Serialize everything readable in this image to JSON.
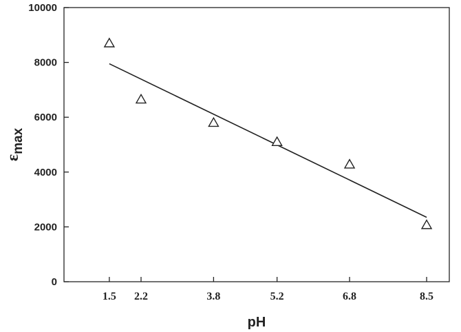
{
  "chart_data": {
    "type": "scatter",
    "xlabel": "pH",
    "ylabel": {
      "symbol": "ε",
      "subscript": "max"
    },
    "xlim": [
      0.5,
      9.0
    ],
    "ylim": [
      0,
      10000
    ],
    "x_ticks": [
      1.5,
      2.2,
      3.8,
      5.2,
      6.8,
      8.5
    ],
    "x_tick_labels": [
      "1.5",
      "2.2",
      "3.8",
      "5.2",
      "6.8",
      "8.5"
    ],
    "y_ticks": [
      0,
      2000,
      4000,
      6000,
      8000,
      10000
    ],
    "y_tick_labels": [
      "0",
      "2000",
      "4000",
      "6000",
      "8000",
      "10000"
    ],
    "grid": false,
    "marker": "open-triangle",
    "series": [
      {
        "x": [
          1.5,
          2.2,
          3.8,
          5.2,
          6.8,
          8.5
        ],
        "y": [
          8700,
          6650,
          5800,
          5100,
          4280,
          2070
        ]
      }
    ],
    "fit_line": {
      "x": [
        1.5,
        8.5
      ],
      "y": [
        7950,
        2350
      ]
    }
  }
}
